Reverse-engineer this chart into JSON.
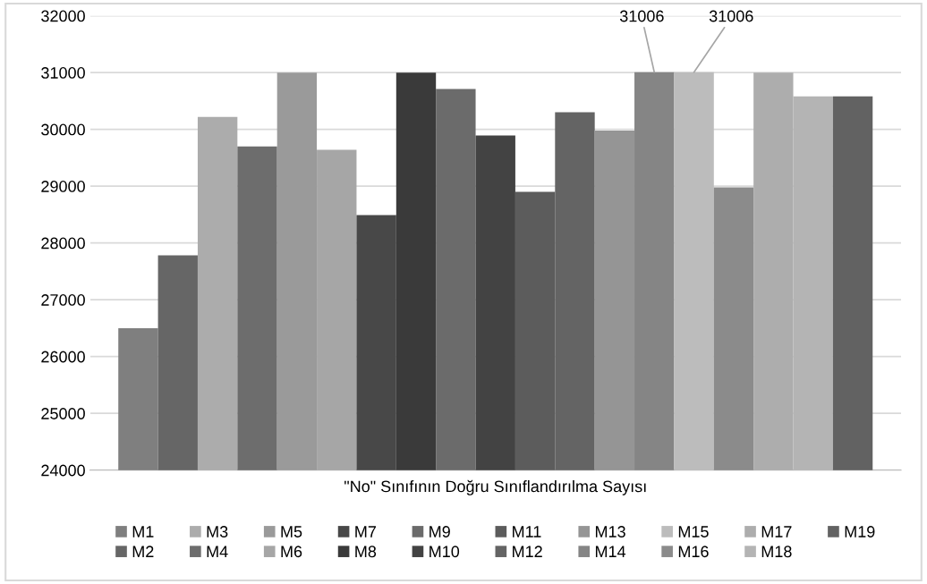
{
  "chart_data": {
    "type": "bar",
    "categories": [
      "\"No\" Sınıfının Doğru Sınıflandırılma Sayısı"
    ],
    "series": [
      {
        "name": "M1",
        "color": "#7f7f7f",
        "values": [
          26500
        ]
      },
      {
        "name": "M2",
        "color": "#666666",
        "values": [
          27780
        ]
      },
      {
        "name": "M3",
        "color": "#acacac",
        "values": [
          30220
        ]
      },
      {
        "name": "M4",
        "color": "#6d6d6d",
        "values": [
          29700
        ]
      },
      {
        "name": "M5",
        "color": "#9a9a9a",
        "values": [
          31000
        ]
      },
      {
        "name": "M6",
        "color": "#a6a6a6",
        "values": [
          29640
        ]
      },
      {
        "name": "M7",
        "color": "#484848",
        "values": [
          28490
        ]
      },
      {
        "name": "M8",
        "color": "#3a3a3a",
        "values": [
          31000
        ]
      },
      {
        "name": "M9",
        "color": "#6b6b6b",
        "values": [
          30710
        ]
      },
      {
        "name": "M10",
        "color": "#434343",
        "values": [
          29890
        ]
      },
      {
        "name": "M11",
        "color": "#5c5c5c",
        "values": [
          28900
        ]
      },
      {
        "name": "M12",
        "color": "#646464",
        "values": [
          30300
        ]
      },
      {
        "name": "M13",
        "color": "#959595",
        "values": [
          29980
        ]
      },
      {
        "name": "M14",
        "color": "#858585",
        "values": [
          31006
        ],
        "value_labels": [
          "31006"
        ]
      },
      {
        "name": "M15",
        "color": "#bcbcbc",
        "values": [
          31006
        ],
        "value_labels": [
          "31006"
        ]
      },
      {
        "name": "M16",
        "color": "#8b8b8b",
        "values": [
          28980
        ]
      },
      {
        "name": "M17",
        "color": "#adadad",
        "values": [
          31000
        ]
      },
      {
        "name": "M18",
        "color": "#b4b4b4",
        "values": [
          30580
        ]
      },
      {
        "name": "M19",
        "color": "#626262",
        "values": [
          30580
        ]
      }
    ],
    "ylim": [
      24000,
      32000
    ],
    "yticks": [
      24000,
      25000,
      26000,
      27000,
      28000,
      29000,
      30000,
      31000,
      32000
    ],
    "grid": "y",
    "legend": "bottom"
  }
}
